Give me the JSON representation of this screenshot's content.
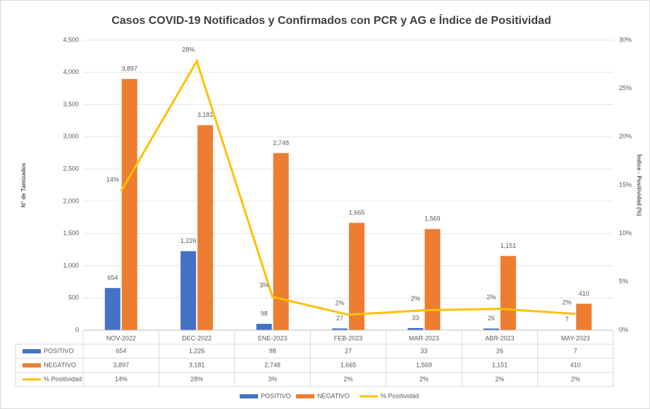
{
  "chart_data": {
    "type": "bar",
    "title": "Casos COVID-19 Notificados y Confirmados con PCR y AG e Índice de Positividad",
    "y_label": "N° de Tamizados",
    "y2_label": "Índice - Positividad (%)",
    "categories": [
      "NOV-2022",
      "DEC-2022",
      "ENE-2023",
      "FEB-2023",
      "MAR-2023",
      "ABR-2023",
      "MAY-2023"
    ],
    "series": [
      {
        "name": "POSITIVO",
        "type": "bar",
        "color": "#4472c4",
        "values": [
          654,
          1226,
          98,
          27,
          33,
          26,
          7
        ],
        "value_labels": [
          "654",
          "1,226",
          "98",
          "27",
          "33",
          "26",
          "7"
        ]
      },
      {
        "name": "NEGATIVO",
        "type": "bar",
        "color": "#ed7d31",
        "values": [
          3897,
          3181,
          2748,
          1665,
          1569,
          1151,
          410
        ],
        "value_labels": [
          "3,897",
          "3,181",
          "2,748",
          "1,665",
          "1,569",
          "1,151",
          "410"
        ]
      },
      {
        "name": "% Positividad",
        "type": "line",
        "axis": "y2",
        "color": "#ffc000",
        "values": [
          14.37,
          27.82,
          3.44,
          1.6,
          2.06,
          2.21,
          1.68
        ],
        "value_labels": [
          "14%",
          "28%",
          "3%",
          "2%",
          "2%",
          "2%",
          "2%"
        ]
      }
    ],
    "ylim": [
      0,
      4500
    ],
    "yticks": [
      0,
      500,
      {
        "value": 1000,
        "label": "1,000"
      },
      {
        "value": 1500,
        "label": "1,500"
      },
      {
        "value": 2000,
        "label": "2,000"
      },
      {
        "value": 2500,
        "label": "2,500"
      },
      {
        "value": 3000,
        "label": "3,000"
      },
      {
        "value": 3500,
        "label": "3,500"
      },
      {
        "value": 4000,
        "label": "4,000"
      },
      {
        "value": 4500,
        "label": "4,500"
      }
    ],
    "y2lim": [
      0,
      30
    ],
    "y2ticks": [
      {
        "value": 0,
        "label": "0%"
      },
      {
        "value": 5,
        "label": "5%"
      },
      {
        "value": 10,
        "label": "10%"
      },
      {
        "value": 15,
        "label": "15%"
      },
      {
        "value": 20,
        "label": "20%"
      },
      {
        "value": 25,
        "label": "25%"
      },
      {
        "value": 30,
        "label": "30%"
      }
    ],
    "grid": true
  }
}
